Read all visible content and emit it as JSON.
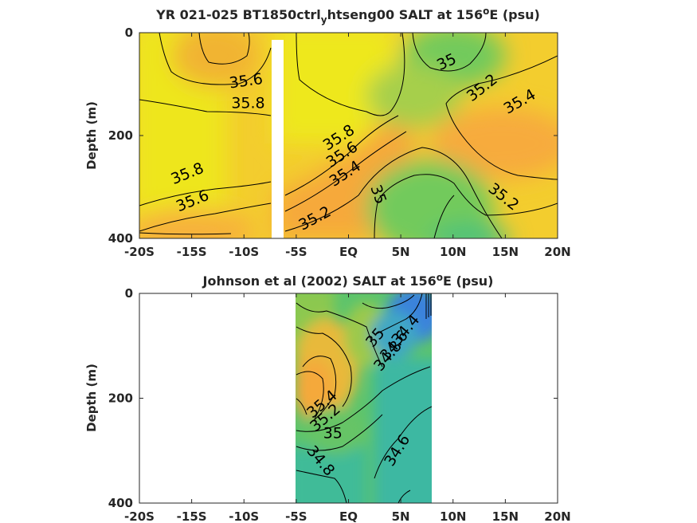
{
  "chart_data": [
    {
      "type": "contour",
      "title_main": "YR 021-025 BT1850ctrl",
      "title_sub": "y",
      "title_rest": "htseng00 SALT at 156",
      "title_sup": "o",
      "title_end": "E (psu)",
      "ylabel": "Depth (m)",
      "xlim": [
        -20,
        20
      ],
      "ylim": [
        0,
        400
      ],
      "y_reversed": true,
      "x_ticks": [
        -20,
        -15,
        -10,
        -5,
        0,
        5,
        10,
        15,
        20
      ],
      "x_tick_labels": [
        "-20S",
        "-15S",
        "-10S",
        "-5S",
        "EQ",
        "5N",
        "10N",
        "15N",
        "20N"
      ],
      "y_ticks": [
        0,
        200,
        400
      ],
      "y_tick_labels": [
        "0",
        "200",
        "400"
      ],
      "data_coverage": {
        "x": [
          -20,
          20
        ],
        "y": [
          0,
          395
        ]
      },
      "gap_x": [
        -7.2,
        -6.1
      ],
      "contour_labels": [
        {
          "text": "35.6",
          "x": -9.8,
          "y": 95,
          "angle": -8
        },
        {
          "text": "35.8",
          "x": -9.6,
          "y": 138,
          "angle": 0
        },
        {
          "text": "35.8",
          "x": -15.4,
          "y": 275,
          "angle": -22
        },
        {
          "text": "35.6",
          "x": -14.9,
          "y": 328,
          "angle": -22
        },
        {
          "text": "35",
          "x": 9.4,
          "y": 58,
          "angle": -25
        },
        {
          "text": "35.2",
          "x": 12.8,
          "y": 108,
          "angle": -38
        },
        {
          "text": "35.4",
          "x": 16.4,
          "y": 135,
          "angle": -30
        },
        {
          "text": "35.8",
          "x": -0.9,
          "y": 205,
          "angle": -33
        },
        {
          "text": "35.6",
          "x": -0.6,
          "y": 238,
          "angle": -33
        },
        {
          "text": "35.4",
          "x": -0.3,
          "y": 275,
          "angle": -33
        },
        {
          "text": "35",
          "x": 2.8,
          "y": 315,
          "angle": 70
        },
        {
          "text": "35.2",
          "x": 14.8,
          "y": 320,
          "angle": 38
        },
        {
          "text": "35.2",
          "x": -3.2,
          "y": 362,
          "angle": -28
        }
      ],
      "colors": {
        "light_yellow": "#eee61e",
        "orange": "#f7b03a",
        "green": "#72ca5c",
        "teal": "#3bbfa0"
      }
    },
    {
      "type": "contour",
      "title_main": "Johnson et al (2002) SALT at 156",
      "title_sup": "o",
      "title_end": "E (psu)",
      "ylabel": "Depth (m)",
      "xlim": [
        -20,
        20
      ],
      "ylim": [
        0,
        400
      ],
      "y_reversed": true,
      "x_ticks": [
        -20,
        -15,
        -10,
        -5,
        0,
        5,
        10,
        15,
        20
      ],
      "x_tick_labels": [
        "-20S",
        "-15S",
        "-10S",
        "-5S",
        "EQ",
        "5N",
        "10N",
        "15N",
        "20N"
      ],
      "y_ticks": [
        0,
        200,
        400
      ],
      "y_tick_labels": [
        "0",
        "200",
        "400"
      ],
      "data_coverage": {
        "x": [
          -5,
          8
        ],
        "y": [
          0,
          400
        ]
      },
      "contour_labels": [
        {
          "text": "34.4",
          "x": 5.5,
          "y": 70,
          "angle": -50
        },
        {
          "text": "34.6",
          "x": 4.4,
          "y": 100,
          "angle": -50
        },
        {
          "text": "34.8",
          "x": 3.8,
          "y": 120,
          "angle": -50
        },
        {
          "text": "35",
          "x": 2.6,
          "y": 85,
          "angle": -50
        },
        {
          "text": "35.4",
          "x": -2.5,
          "y": 212,
          "angle": -40
        },
        {
          "text": "35.2",
          "x": -2.2,
          "y": 238,
          "angle": -40
        },
        {
          "text": "35",
          "x": -1.5,
          "y": 268,
          "angle": 0
        },
        {
          "text": "34.6",
          "x": 4.7,
          "y": 300,
          "angle": -58
        },
        {
          "text": "34.8",
          "x": -2.7,
          "y": 320,
          "angle": 50
        }
      ],
      "colors": {
        "orange": "#f4b83a",
        "yellow": "#d8c732",
        "green": "#6cc35c",
        "teal": "#3cb8a2",
        "blue": "#3a82dc"
      }
    }
  ]
}
